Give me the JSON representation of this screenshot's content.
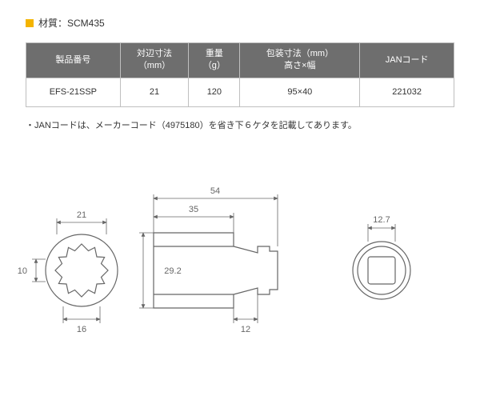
{
  "title": {
    "label": "材質：SCM435"
  },
  "table": {
    "headers": [
      "製品番号",
      "対辺寸法\n（mm）",
      "重量\n（g）",
      "包装寸法（mm）\n高さ×幅",
      "JANコード"
    ],
    "row": {
      "product_no": "EFS-21SSP",
      "af": "21",
      "weight": "120",
      "package": "95×40",
      "jan": "221032"
    },
    "col_widths": [
      "22%",
      "16%",
      "12%",
      "28%",
      "22%"
    ],
    "header_bg": "#6e6e6e",
    "header_fg": "#ffffff",
    "border": "#bfbfbf"
  },
  "note": "・JANコードは、メーカーコード（4975180）を省き下６ケタを記載してあります。",
  "drawing": {
    "stroke": "#666666",
    "font_size": 11,
    "front": {
      "af_label": "21",
      "height_label": "10",
      "base_width_label": "16",
      "points": 12
    },
    "side": {
      "total_length_label": "54",
      "body_length_label": "35",
      "outer_dia_label": "29.2",
      "shank_width_label": "12"
    },
    "rear": {
      "drive_label": "12.7"
    }
  }
}
